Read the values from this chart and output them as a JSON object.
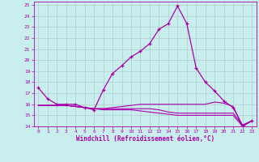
{
  "xlabel": "Windchill (Refroidissement éolien,°C)",
  "bg_color": "#c8eeee",
  "grid_color": "#b0cccc",
  "line_color": "#aa00aa",
  "xlim": [
    -0.5,
    23.5
  ],
  "ylim": [
    14,
    25.3
  ],
  "ytick_vals": [
    14,
    15,
    16,
    17,
    18,
    19,
    20,
    21,
    22,
    23,
    24,
    25
  ],
  "xtick_vals": [
    0,
    1,
    2,
    3,
    4,
    5,
    6,
    7,
    8,
    9,
    10,
    11,
    12,
    13,
    14,
    15,
    16,
    17,
    18,
    19,
    20,
    21,
    22,
    23
  ],
  "series1_x": [
    0,
    1,
    2,
    3,
    4,
    5,
    6,
    7,
    8,
    9,
    10,
    11,
    12,
    13,
    14,
    15,
    16,
    17,
    18,
    19,
    20,
    21,
    22,
    23
  ],
  "series1_y": [
    17.5,
    16.5,
    16.0,
    16.0,
    16.0,
    15.7,
    15.5,
    17.3,
    18.8,
    19.5,
    20.3,
    20.8,
    21.5,
    22.8,
    23.3,
    24.9,
    23.3,
    19.3,
    18.0,
    17.2,
    16.3,
    15.7,
    14.1,
    14.5
  ],
  "series2_x": [
    0,
    1,
    2,
    3,
    4,
    5,
    6,
    7,
    8,
    9,
    10,
    11,
    12,
    13,
    14,
    15,
    16,
    17,
    18,
    19,
    20,
    21,
    22,
    23
  ],
  "series2_y": [
    15.9,
    15.9,
    15.9,
    15.9,
    15.8,
    15.7,
    15.6,
    15.6,
    15.6,
    15.6,
    15.6,
    15.6,
    15.6,
    15.5,
    15.3,
    15.2,
    15.2,
    15.2,
    15.2,
    15.2,
    15.2,
    15.2,
    14.1,
    14.5
  ],
  "series3_x": [
    0,
    1,
    2,
    3,
    4,
    5,
    6,
    7,
    8,
    9,
    10,
    11,
    12,
    13,
    14,
    15,
    16,
    17,
    18,
    19,
    20,
    21,
    22,
    23
  ],
  "series3_y": [
    15.9,
    15.9,
    15.9,
    15.9,
    15.8,
    15.7,
    15.6,
    15.6,
    15.7,
    15.8,
    15.9,
    16.0,
    16.0,
    16.0,
    16.0,
    16.0,
    16.0,
    16.0,
    16.0,
    16.2,
    16.1,
    15.8,
    14.0,
    14.5
  ],
  "series4_x": [
    0,
    1,
    2,
    3,
    4,
    5,
    6,
    7,
    8,
    9,
    10,
    11,
    12,
    13,
    14,
    15,
    16,
    17,
    18,
    19,
    20,
    21,
    22,
    23
  ],
  "series4_y": [
    15.9,
    15.9,
    15.9,
    15.9,
    15.8,
    15.7,
    15.6,
    15.5,
    15.5,
    15.5,
    15.5,
    15.4,
    15.3,
    15.2,
    15.1,
    15.0,
    15.0,
    15.0,
    15.0,
    15.0,
    15.0,
    15.0,
    14.0,
    14.5
  ]
}
